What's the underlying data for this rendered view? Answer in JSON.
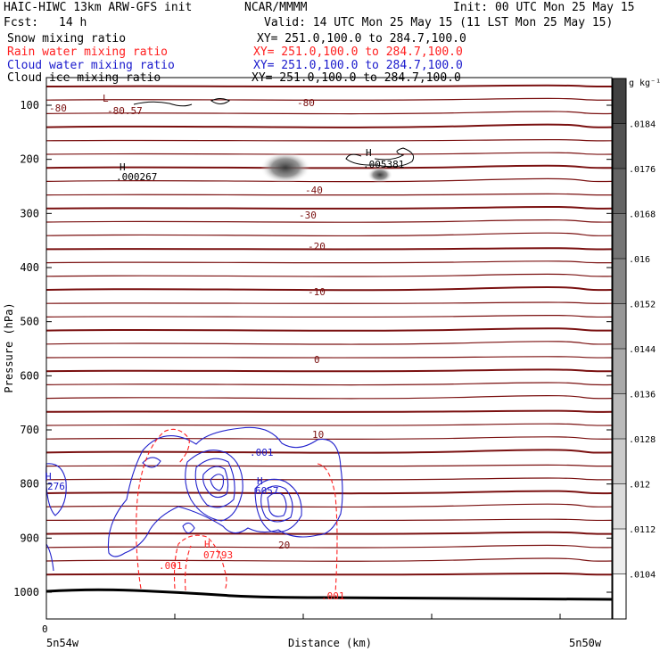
{
  "header": {
    "model": "HAIC-HIWC 13km ARW-GFS init",
    "agency": "NCAR/MMMM",
    "init": "Init: 00 UTC Mon 25 May 15",
    "fcst_label": "Fcst:",
    "fcst_value": "14 h",
    "valid": "Valid: 14 UTC Mon 25 May 15 (11 LST Mon 25 May 15)"
  },
  "fields": [
    {
      "name": "Snow mixing ratio",
      "xy": "XY= 251.0,100.0 to 284.7,100.0",
      "color": "#000000"
    },
    {
      "name": "Rain water mixing ratio",
      "xy": "XY= 251.0,100.0 to 284.7,100.0",
      "color": "#ff2020"
    },
    {
      "name": "Cloud water mixing ratio",
      "xy": "XY= 251.0,100.0 to 284.7,100.0",
      "color": "#1a1acc"
    },
    {
      "name": "Cloud ice mixing ratio",
      "xy": "XY= 251.0,100.0 to 284.7,100.0",
      "color": "#000000"
    }
  ],
  "chart_data": {
    "type": "cross-section",
    "ylabel": "Pressure (hPa)",
    "xlabel": "Distance (km)",
    "yticks": [
      100,
      200,
      300,
      400,
      500,
      600,
      700,
      800,
      900,
      1000
    ],
    "ylim": [
      1050,
      50
    ],
    "x_origin_label": "0",
    "x_left_label": "5n54w",
    "x_right_label": "5n50w",
    "colorbar": {
      "unit": "g kg⁻¹",
      "ticks": [
        ".0104",
        ".0112",
        ".012",
        ".0128",
        ".0136",
        ".0144",
        ".0152",
        ".016",
        ".0168",
        ".0176",
        ".0184"
      ]
    },
    "temperature_contour_labels": [
      {
        "text": "-80",
        "p": 110
      },
      {
        "text": "-80.57",
        "p": 110
      },
      {
        "text": "-80",
        "p": 97
      },
      {
        "text": "-40",
        "p": 256
      },
      {
        "text": "-30",
        "p": 301
      },
      {
        "text": "-20",
        "p": 369
      },
      {
        "text": "-10",
        "p": 429
      },
      {
        "text": "0",
        "p": 567
      },
      {
        "text": "10",
        "p": 711
      },
      {
        "text": "20",
        "p": 917
      }
    ],
    "extrema_labels": [
      {
        "mark": "L",
        "value": "-80.57",
        "series": "temperature"
      },
      {
        "mark": "H",
        "value": ".000267",
        "series": "cloud ice"
      },
      {
        "mark": "H",
        "value": ".005381",
        "series": "cloud ice"
      },
      {
        "mark": "H",
        "value": "276",
        "series": "cloud water"
      },
      {
        "mark": "H",
        "value": "6057",
        "series": "cloud water"
      },
      {
        "mark": "H",
        "value": "07793",
        "series": "rain water"
      }
    ],
    "contour_value_labels": [
      {
        "text": ".001",
        "series": "cloud water"
      },
      {
        "text": ".001",
        "series": "rain water"
      },
      {
        "text": ".001",
        "series": "rain water"
      }
    ]
  }
}
